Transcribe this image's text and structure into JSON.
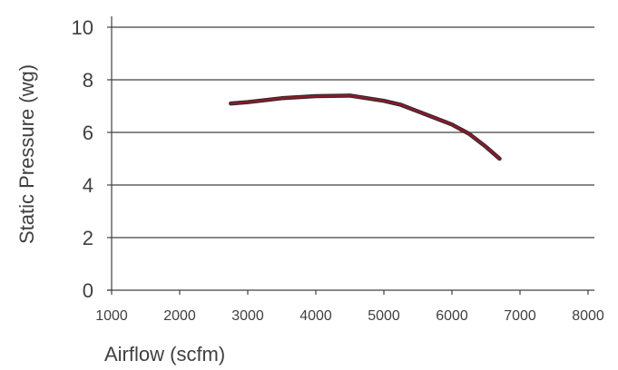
{
  "chart_data": {
    "type": "line",
    "title": "",
    "xlabel": "Airflow (scfm)",
    "ylabel": "Static Pressure (wg)",
    "xlim": [
      1000,
      8000
    ],
    "ylim": [
      0,
      10
    ],
    "x_ticks": [
      1000,
      2000,
      3000,
      4000,
      5000,
      6000,
      7000,
      8000
    ],
    "y_ticks": [
      0,
      2,
      4,
      6,
      8,
      10
    ],
    "grid": "horizontal",
    "legend": "none",
    "series": [
      {
        "color": "#8B1A2B",
        "x": [
          2750,
          3000,
          3500,
          4000,
          4500,
          5000,
          5250,
          5500,
          6000,
          6250,
          6500,
          6700
        ],
        "y": [
          7.1,
          7.15,
          7.3,
          7.38,
          7.4,
          7.2,
          7.05,
          6.8,
          6.3,
          5.95,
          5.45,
          5.0
        ]
      }
    ]
  }
}
